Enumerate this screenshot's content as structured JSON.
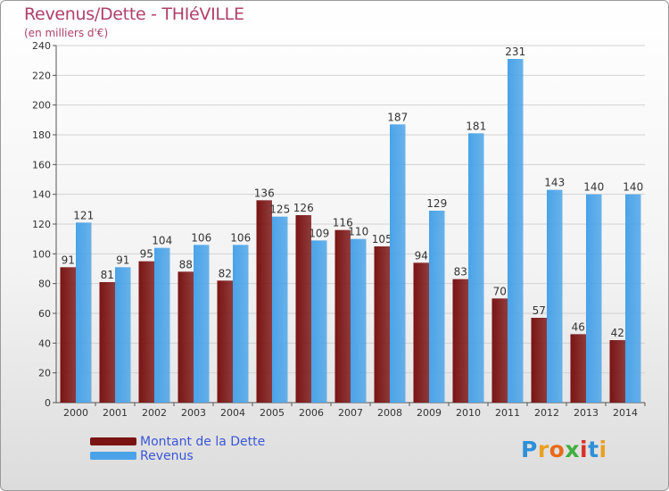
{
  "chart_data": {
    "type": "bar",
    "title": "Revenus/Dette - THIéVILLE",
    "subtitle": "(en milliers d'€)",
    "categories": [
      "2000",
      "2001",
      "2002",
      "2003",
      "2004",
      "2005",
      "2006",
      "2007",
      "2008",
      "2009",
      "2010",
      "2011",
      "2012",
      "2013",
      "2014"
    ],
    "series": [
      {
        "name": "Montant de la Dette",
        "color": "#7a1414",
        "values": [
          91,
          81,
          95,
          88,
          82,
          136,
          126,
          116,
          105,
          94,
          83,
          70,
          57,
          46,
          42
        ]
      },
      {
        "name": "Revenus",
        "color": "#4aa3e8",
        "values": [
          121,
          91,
          104,
          106,
          106,
          125,
          109,
          110,
          187,
          129,
          181,
          231,
          143,
          140,
          140
        ]
      }
    ],
    "ylim": [
      0,
      240
    ],
    "yticks": [
      0,
      20,
      40,
      60,
      80,
      100,
      120,
      140,
      160,
      180,
      200,
      220,
      240
    ],
    "grid": true,
    "legend_position": "bottom-left"
  },
  "logo": {
    "letters": [
      "P",
      "r",
      "o",
      "x",
      "i",
      "t",
      "i"
    ],
    "colors": [
      "#2f8fd8",
      "#e8a020",
      "#e86a1a",
      "#3fae3f",
      "#d8302a",
      "#2f8fd8",
      "#e8a020"
    ]
  }
}
